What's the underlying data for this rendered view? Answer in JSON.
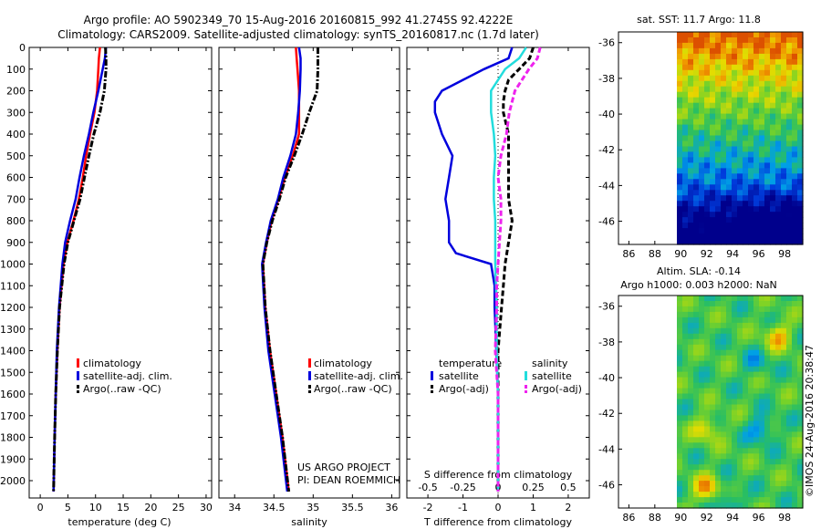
{
  "header": {
    "title_line1": "Argo profile: AO 5902349_70 15-Aug-2016 20160815_992 41.2745S 92.4222E",
    "title_line2": "Climatology: CARS2009. Satellite-adjusted climatology: synTS_20160817.nc (1.7d later)"
  },
  "colors": {
    "climatology": "#ff0000",
    "satellite": "#0000dd",
    "argo": "#000000",
    "salinity_satellite": "#22dddd",
    "salinity_argo": "#ee22ee"
  },
  "chart_data": [
    {
      "type": "line",
      "name": "temperature",
      "xlabel": "temperature (deg C)",
      "xlim": [
        -2,
        31
      ],
      "ylim": [
        2080,
        0
      ],
      "xticks": [
        0,
        5,
        10,
        15,
        20,
        25,
        30
      ],
      "yticks": [
        0,
        100,
        200,
        300,
        400,
        500,
        600,
        700,
        800,
        900,
        1000,
        1100,
        1200,
        1300,
        1400,
        1500,
        1600,
        1700,
        1800,
        1900,
        2000
      ],
      "legend": [
        "climatology",
        "satellite-adj. clim.",
        "Argo(..raw -QC)"
      ],
      "series": [
        {
          "name": "climatology",
          "color": "#ff0000",
          "style": "solid",
          "depth": [
            0,
            50,
            100,
            200,
            300,
            400,
            500,
            600,
            700,
            800,
            900,
            1000,
            1200,
            1400,
            1600,
            1800,
            2050
          ],
          "values": [
            10.8,
            10.6,
            10.5,
            10.3,
            9.8,
            9.0,
            8.3,
            7.7,
            7.0,
            6.0,
            4.9,
            4.2,
            3.5,
            3.1,
            2.8,
            2.6,
            2.4
          ]
        },
        {
          "name": "satellite",
          "color": "#0000dd",
          "style": "solid",
          "depth": [
            0,
            50,
            100,
            200,
            300,
            400,
            500,
            600,
            700,
            800,
            900,
            1000,
            1200,
            1400,
            1600,
            1800,
            2050
          ],
          "values": [
            11.9,
            11.7,
            11.3,
            10.5,
            9.6,
            8.8,
            7.9,
            7.1,
            6.4,
            5.4,
            4.5,
            4.0,
            3.4,
            3.0,
            2.8,
            2.6,
            2.4
          ]
        },
        {
          "name": "Argo",
          "color": "#000000",
          "style": "dashdot",
          "depth": [
            0,
            50,
            100,
            200,
            300,
            400,
            500,
            600,
            700,
            800,
            900,
            1000,
            1200,
            1400,
            1600,
            1800,
            2050
          ],
          "values": [
            11.8,
            11.9,
            11.9,
            11.6,
            10.8,
            9.7,
            8.8,
            8.0,
            7.2,
            6.1,
            5.0,
            4.3,
            3.5,
            3.1,
            2.8,
            2.6,
            2.4
          ]
        }
      ]
    },
    {
      "type": "line",
      "name": "salinity",
      "xlabel": "salinity",
      "xlim": [
        33.8,
        36.1
      ],
      "ylim": [
        2080,
        0
      ],
      "xticks": [
        34,
        34.5,
        35,
        35.5,
        36
      ],
      "legend": [
        "climatology",
        "satellite-adj. clim.",
        "Argo(..raw -QC)"
      ],
      "series": [
        {
          "name": "climatology",
          "color": "#ff0000",
          "style": "solid",
          "depth": [
            0,
            50,
            100,
            200,
            300,
            400,
            500,
            600,
            700,
            800,
            900,
            1000,
            1200,
            1400,
            1600,
            1800,
            2050
          ],
          "values": [
            34.78,
            34.79,
            34.8,
            34.82,
            34.82,
            34.82,
            34.74,
            34.64,
            34.56,
            34.47,
            34.41,
            34.36,
            34.39,
            34.45,
            34.53,
            34.61,
            34.69
          ]
        },
        {
          "name": "satellite",
          "color": "#0000dd",
          "style": "solid",
          "depth": [
            0,
            50,
            100,
            200,
            300,
            400,
            500,
            600,
            700,
            800,
            900,
            1000,
            1200,
            1400,
            1600,
            1800,
            2050
          ],
          "values": [
            34.82,
            34.84,
            34.84,
            34.83,
            34.81,
            34.78,
            34.71,
            34.62,
            34.55,
            34.46,
            34.4,
            34.35,
            34.38,
            34.43,
            34.51,
            34.59,
            34.67
          ]
        },
        {
          "name": "Argo",
          "color": "#000000",
          "style": "dashdot",
          "depth": [
            0,
            50,
            100,
            200,
            300,
            400,
            500,
            600,
            700,
            800,
            900,
            1000,
            1200,
            1400,
            1600,
            1800,
            2050
          ],
          "values": [
            35.06,
            35.06,
            35.06,
            35.05,
            34.95,
            34.86,
            34.76,
            34.65,
            34.57,
            34.48,
            34.41,
            34.36,
            34.39,
            34.45,
            34.53,
            34.61,
            34.69
          ]
        }
      ]
    },
    {
      "type": "line",
      "name": "difference",
      "xlabel": "T difference from climatology",
      "xlabel_top": "S difference from climatology",
      "xlim": [
        -2.6,
        2.6
      ],
      "ylim": [
        2080,
        0
      ],
      "xticks": [
        -2,
        -1,
        0,
        1,
        2
      ],
      "s_ticks": [
        "-0.5",
        "-0.25",
        "0",
        "0.25",
        "0.5"
      ],
      "legend_temperature_title": "temperature",
      "legend_salinity_title": "salinity",
      "legend_temperature": [
        "satellite",
        "Argo(-adj)"
      ],
      "legend_salinity": [
        "satellite",
        "Argo(-adj)"
      ],
      "series": [
        {
          "name": "T satellite",
          "color": "#0000dd",
          "style": "solid",
          "depth": [
            0,
            50,
            100,
            150,
            200,
            250,
            300,
            400,
            500,
            600,
            700,
            800,
            900,
            950,
            1000,
            1100,
            1200,
            1400,
            1600,
            2050
          ],
          "values": [
            0.4,
            0.3,
            -0.4,
            -1.0,
            -1.6,
            -1.8,
            -1.8,
            -1.6,
            -1.3,
            -1.4,
            -1.5,
            -1.4,
            -1.4,
            -1.2,
            -0.2,
            -0.1,
            -0.1,
            -0.05,
            0.0,
            0.0
          ]
        },
        {
          "name": "T Argo(-adj)",
          "color": "#000000",
          "style": "dashed",
          "depth": [
            0,
            50,
            100,
            150,
            200,
            250,
            300,
            400,
            500,
            600,
            700,
            800,
            900,
            1000,
            1100,
            1200,
            1400,
            1600,
            2050
          ],
          "values": [
            1.0,
            0.9,
            0.6,
            0.3,
            0.2,
            0.15,
            0.15,
            0.3,
            0.3,
            0.3,
            0.3,
            0.4,
            0.3,
            0.2,
            0.15,
            0.1,
            0.0,
            0.0,
            0.0
          ]
        },
        {
          "name": "S satellite",
          "color": "#22dddd",
          "style": "solid",
          "depth": [
            0,
            50,
            100,
            200,
            300,
            400,
            500,
            600,
            700,
            800,
            900,
            1000,
            1200,
            1400,
            1600,
            2050
          ],
          "values": [
            0.2,
            0.15,
            0.05,
            -0.05,
            -0.05,
            -0.03,
            -0.02,
            -0.03,
            -0.03,
            -0.02,
            -0.02,
            -0.02,
            -0.01,
            -0.01,
            0.0,
            0.0
          ]
        },
        {
          "name": "S Argo(-adj)",
          "color": "#ee22ee",
          "style": "dashed",
          "depth": [
            0,
            50,
            100,
            200,
            300,
            400,
            500,
            600,
            700,
            800,
            900,
            1000,
            1100,
            1200,
            1400,
            1600,
            2050
          ],
          "values": [
            0.3,
            0.28,
            0.22,
            0.12,
            0.08,
            0.06,
            0.02,
            0.0,
            0.02,
            0.02,
            0.01,
            0.0,
            -0.01,
            -0.01,
            -0.02,
            0.0,
            0.0
          ]
        }
      ]
    },
    {
      "type": "heatmap",
      "name": "sat_sst",
      "title": "sat. SST: 11.7 Argo: 11.8",
      "xticks": [
        86,
        88,
        90,
        92,
        94,
        96,
        98
      ],
      "yticks": [
        -36,
        -38,
        -40,
        -42,
        -44,
        -46
      ]
    },
    {
      "type": "heatmap",
      "name": "altim_sla",
      "title_line1": "Altim. SLA: -0.14",
      "title_line2": "Argo h1000: 0.003 h2000: NaN",
      "xticks": [
        86,
        88,
        90,
        92,
        94,
        96,
        98
      ],
      "yticks": [
        -36,
        -38,
        -40,
        -42,
        -44,
        -46
      ]
    }
  ],
  "annotations": {
    "project_line1": "US ARGO PROJECT",
    "project_line2": "PI: DEAN ROEMMICH",
    "credit": "©IMOS 24-Aug-2016 20:38:47"
  }
}
